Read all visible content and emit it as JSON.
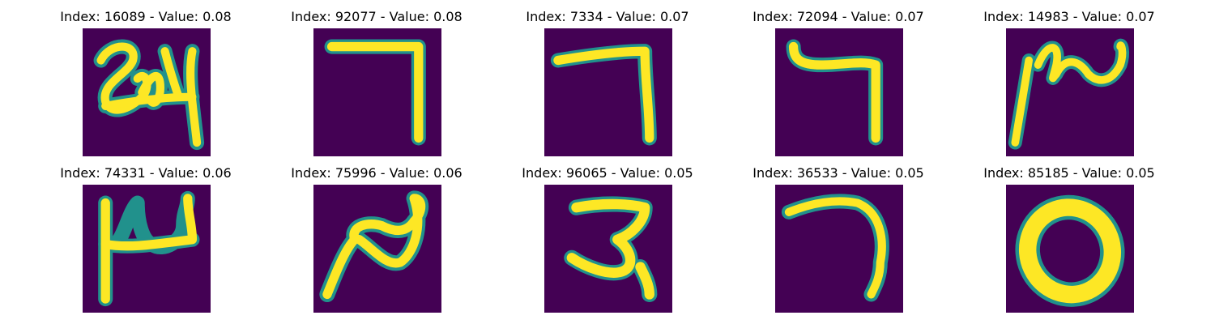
{
  "figure": {
    "panels": [
      {
        "index": "16089",
        "value": "0.08",
        "title": "Index: 16089 - Value: 0.08",
        "glyph": "scribble-24-icon"
      },
      {
        "index": "92077",
        "value": "0.08",
        "title": "Index: 92077 - Value: 0.08",
        "glyph": "seven-stroke-icon"
      },
      {
        "index": "7334",
        "value": "0.07",
        "title": "Index: 7334 - Value: 0.07",
        "glyph": "seven-stroke-icon"
      },
      {
        "index": "72094",
        "value": "0.07",
        "title": "Index: 72094 - Value: 0.07",
        "glyph": "seven-stroke-icon"
      },
      {
        "index": "14983",
        "value": "0.07",
        "title": "Index: 14983 - Value: 0.07",
        "glyph": "wave-stroke-icon"
      },
      {
        "index": "74331",
        "value": "0.06",
        "title": "Index: 74331 - Value: 0.06",
        "glyph": "h-stroke-icon"
      },
      {
        "index": "75996",
        "value": "0.06",
        "title": "Index: 75996 - Value: 0.06",
        "glyph": "n-stroke-icon"
      },
      {
        "index": "96065",
        "value": "0.05",
        "title": "Index: 96065 - Value: 0.05",
        "glyph": "three-stroke-icon"
      },
      {
        "index": "36533",
        "value": "0.05",
        "title": "Index: 36533 - Value: 0.05",
        "glyph": "seven-curve-icon"
      },
      {
        "index": "85185",
        "value": "0.05",
        "title": "Index: 85185 - Value: 0.05",
        "glyph": "zero-ring-icon"
      }
    ],
    "colors": {
      "background": "#440154",
      "stroke": "#fde725",
      "edge": "#21918c"
    }
  }
}
